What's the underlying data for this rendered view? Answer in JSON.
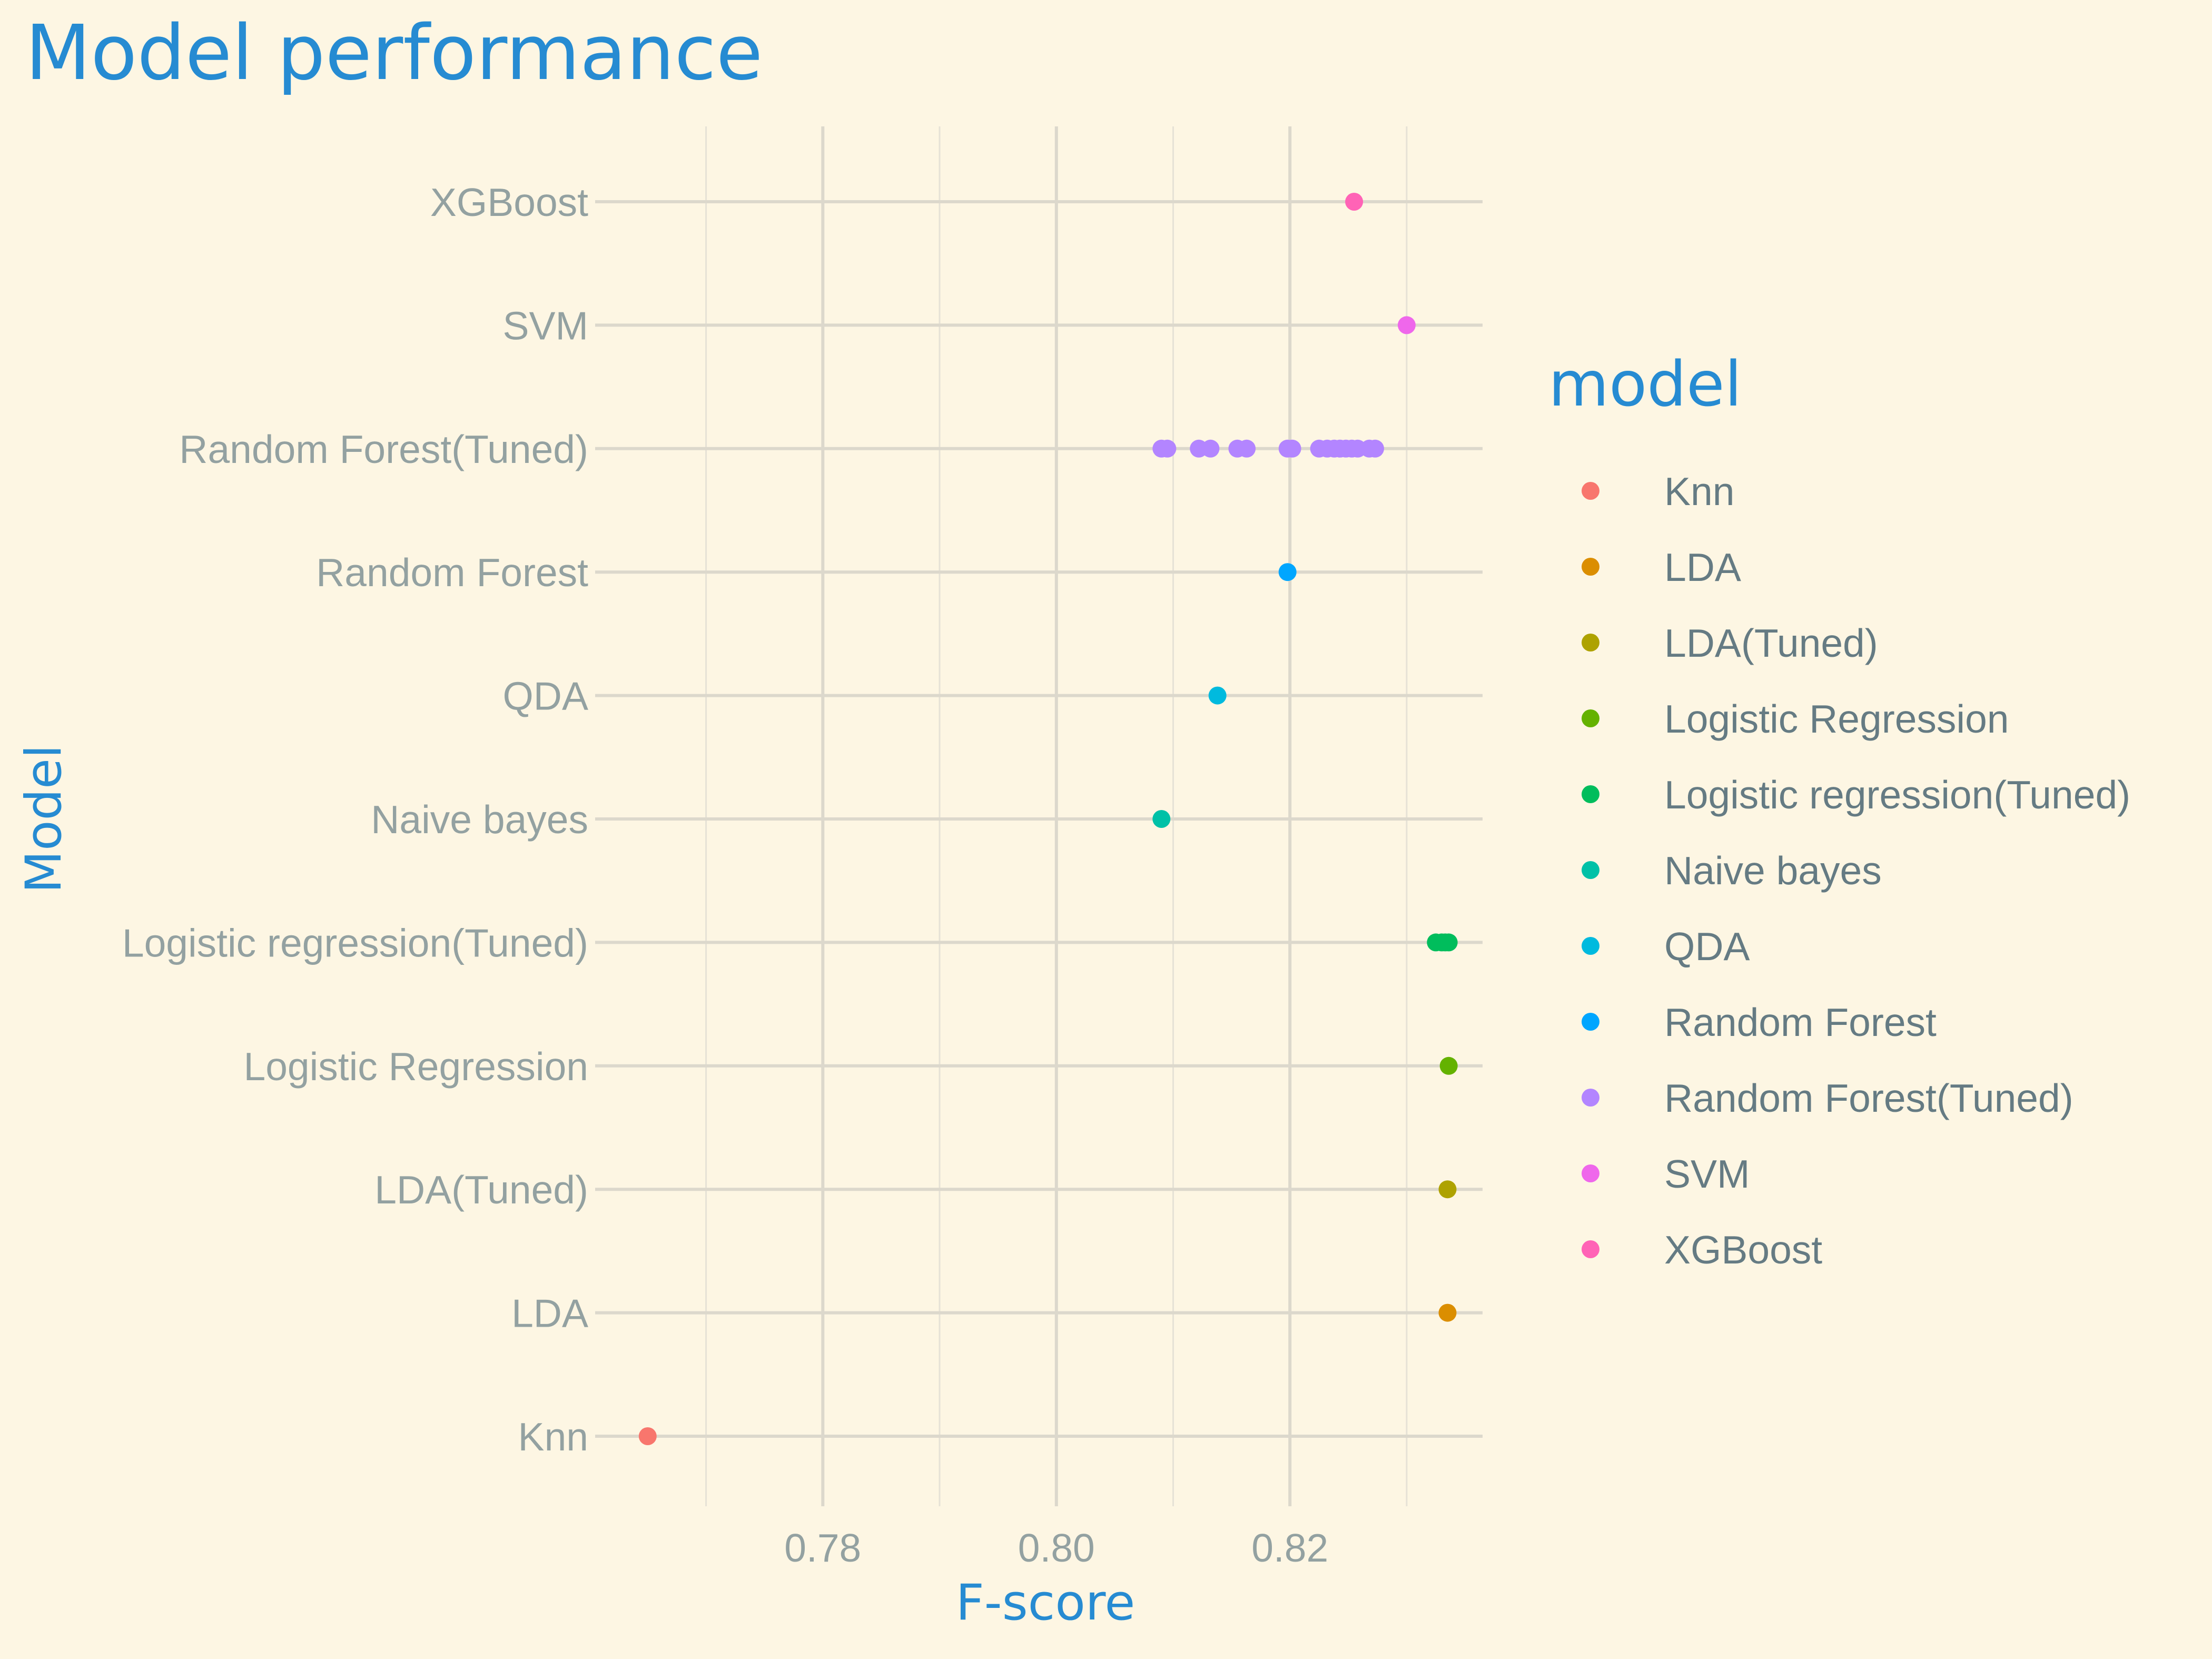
{
  "chart_data": {
    "type": "scatter",
    "title": "Model performance",
    "xlabel": "F-score",
    "ylabel": "Model",
    "xlim": [
      0.7605,
      0.8365
    ],
    "x_ticks": [
      "0.78",
      "0.80",
      "0.82"
    ],
    "x_tick_values": [
      0.78,
      0.8,
      0.82
    ],
    "categories": [
      "Knn",
      "LDA",
      "LDA(Tuned)",
      "Logistic Regression",
      "Logistic regression(Tuned)",
      "Naive bayes",
      "QDA",
      "Random Forest",
      "Random Forest(Tuned)",
      "SVM",
      "XGBoost"
    ],
    "legend_title": "model",
    "legend_position": "right",
    "grid": true,
    "series": [
      {
        "name": "Knn",
        "color": "#F8766D",
        "x": [
          0.765
        ]
      },
      {
        "name": "LDA",
        "color": "#DB8E00",
        "x": [
          0.8335
        ]
      },
      {
        "name": "LDA(Tuned)",
        "color": "#AEA200",
        "x": [
          0.8335
        ]
      },
      {
        "name": "Logistic Regression",
        "color": "#64B200",
        "x": [
          0.8336
        ]
      },
      {
        "name": "Logistic regression(Tuned)",
        "color": "#00BD5C",
        "x": [
          0.8325,
          0.833,
          0.8333,
          0.8336
        ]
      },
      {
        "name": "Naive bayes",
        "color": "#00C1A7",
        "x": [
          0.809
        ]
      },
      {
        "name": "QDA",
        "color": "#00BADE",
        "x": [
          0.8138
        ]
      },
      {
        "name": "Random Forest",
        "color": "#00A6FF",
        "x": [
          0.8198
        ]
      },
      {
        "name": "Random Forest(Tuned)",
        "color": "#B385FF",
        "x": [
          0.809,
          0.8095,
          0.8122,
          0.8132,
          0.8155,
          0.8163,
          0.8198,
          0.8202,
          0.8225,
          0.8232,
          0.8238,
          0.8243,
          0.8248,
          0.8253,
          0.8258,
          0.8268,
          0.8273
        ]
      },
      {
        "name": "SVM",
        "color": "#EF67EB",
        "x": [
          0.83
        ]
      },
      {
        "name": "XGBoost",
        "color": "#FF63B6",
        "x": [
          0.8255
        ]
      }
    ]
  }
}
